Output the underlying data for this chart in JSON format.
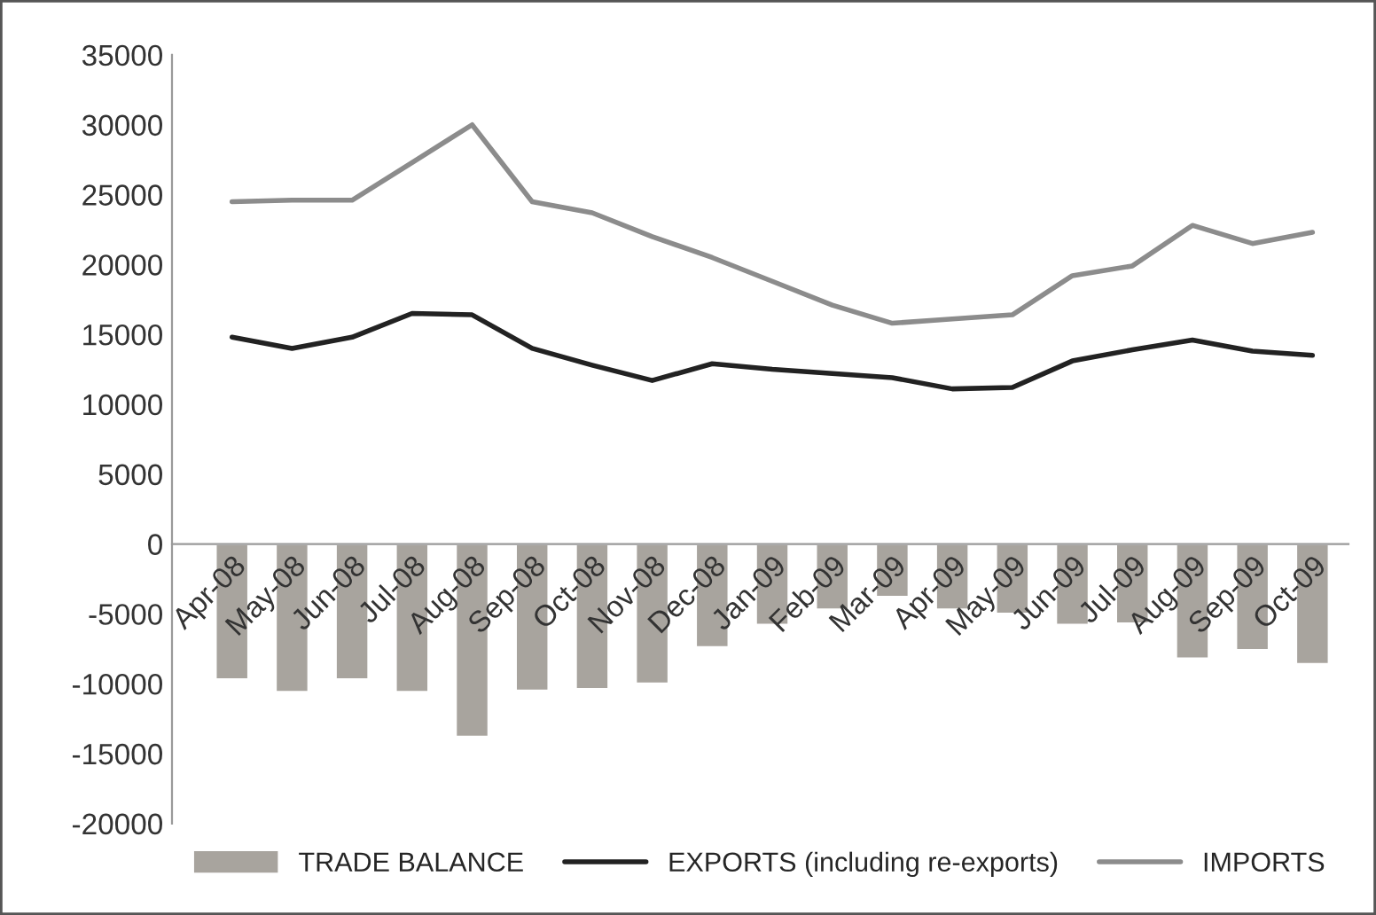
{
  "chart_data": {
    "type": "bar",
    "categories": [
      "Apr-08",
      "May-08",
      "Jun-08",
      "Jul-08",
      "Aug-08",
      "Sep-08",
      "Oct-08",
      "Nov-08",
      "Dec-08",
      "Jan-09",
      "Feb-09",
      "Mar-09",
      "Apr-09",
      "May-09",
      "Jun-09",
      "Jul-09",
      "Aug-09",
      "Sep-09",
      "Oct-09"
    ],
    "series": [
      {
        "name": "TRADE BALANCE",
        "color": "#a8a49e",
        "values": [
          -9700,
          -10600,
          -9700,
          -10600,
          -13800,
          -10500,
          -10400,
          -10000,
          -7400,
          -5800,
          -4700,
          -3800,
          -4700,
          -5000,
          -5800,
          -5700,
          -8200,
          -7600,
          -8600
        ]
      },
      {
        "name": "EXPORTS (including re-exports)",
        "type": "line",
        "color": "#222222",
        "values": [
          14800,
          14000,
          14800,
          16500,
          16400,
          14000,
          12800,
          11700,
          12900,
          12500,
          12200,
          11900,
          11100,
          11200,
          13100,
          13900,
          14600,
          13800,
          13500
        ]
      },
      {
        "name": "IMPORTS",
        "type": "line",
        "color": "#8c8c8c",
        "values": [
          24500,
          24600,
          24600,
          27300,
          30000,
          24500,
          23700,
          22000,
          20500,
          18800,
          17100,
          15800,
          16100,
          16400,
          19200,
          19900,
          22800,
          21500,
          22300
        ]
      }
    ],
    "ylim": [
      -20000,
      35000
    ],
    "yticks": [
      -20000,
      -15000,
      -10000,
      -5000,
      0,
      5000,
      10000,
      15000,
      20000,
      25000,
      30000,
      35000
    ],
    "grid": false,
    "legend": "bottom",
    "marker": "none",
    "line_style": "solid"
  }
}
